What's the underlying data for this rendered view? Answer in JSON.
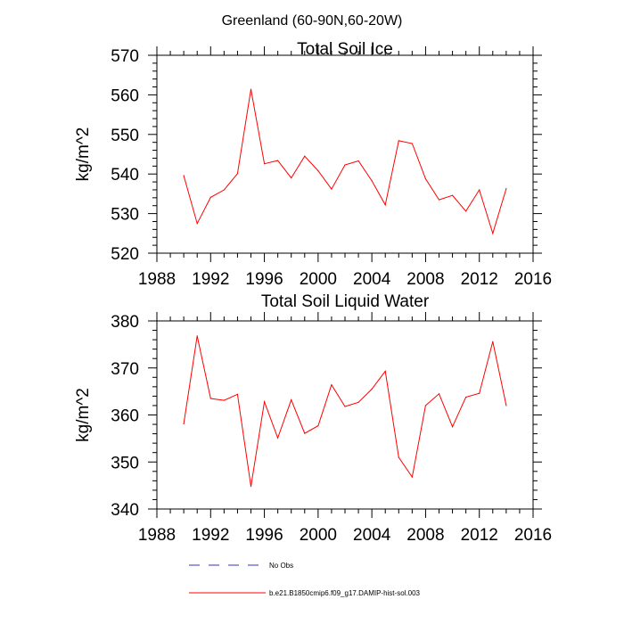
{
  "figure_title": "Greenland (60-90N,60-20W)",
  "chart_data": [
    {
      "type": "line",
      "title": "Total Soil Ice",
      "xlabel": "",
      "ylabel": "kg/m^2",
      "xlim": [
        1988,
        2016
      ],
      "ylim": [
        520,
        570
      ],
      "x_ticks": [
        1988,
        1992,
        1996,
        2000,
        2004,
        2008,
        2012,
        2016
      ],
      "y_ticks": [
        520,
        530,
        540,
        550,
        560,
        570
      ],
      "grid": false,
      "series": [
        {
          "name": "b.e21.B1850cmip6.f09_g17.DAMIP-hist-sol.003",
          "color": "#ff0000",
          "x": [
            1990,
            1991,
            1992,
            1993,
            1994,
            1995,
            1996,
            1997,
            1998,
            1999,
            2000,
            2001,
            2002,
            2003,
            2004,
            2005,
            2006,
            2007,
            2008,
            2009,
            2010,
            2011,
            2012,
            2013,
            2014
          ],
          "y": [
            539.6,
            527.5,
            534.1,
            536.0,
            540.1,
            561.4,
            542.6,
            543.4,
            539.0,
            544.5,
            540.8,
            536.2,
            542.3,
            543.3,
            538.3,
            532.2,
            548.4,
            547.7,
            538.8,
            533.5,
            534.6,
            530.6,
            536.0,
            525.0,
            536.3
          ]
        }
      ]
    },
    {
      "type": "line",
      "title": "Total Soil Liquid Water",
      "xlabel": "",
      "ylabel": "kg/m^2",
      "xlim": [
        1988,
        2016
      ],
      "ylim": [
        340,
        380
      ],
      "x_ticks": [
        1988,
        1992,
        1996,
        2000,
        2004,
        2008,
        2012,
        2016
      ],
      "y_ticks": [
        340,
        350,
        360,
        370,
        380
      ],
      "grid": false,
      "series": [
        {
          "name": "b.e21.B1850cmip6.f09_g17.DAMIP-hist-sol.003",
          "color": "#ff0000",
          "x": [
            1990,
            1991,
            1992,
            1993,
            1994,
            1995,
            1996,
            1997,
            1998,
            1999,
            2000,
            2001,
            2002,
            2003,
            2004,
            2005,
            2006,
            2007,
            2008,
            2009,
            2010,
            2011,
            2012,
            2013,
            2014
          ],
          "y": [
            358.1,
            376.8,
            363.5,
            363.1,
            364.4,
            344.8,
            362.8,
            355.1,
            363.2,
            356.1,
            357.7,
            366.4,
            361.8,
            362.7,
            365.5,
            369.3,
            351.0,
            346.8,
            362.0,
            364.5,
            357.5,
            363.8,
            364.6,
            375.6,
            362.0
          ]
        }
      ]
    }
  ],
  "legend": {
    "placement": "bottom",
    "entries": [
      {
        "label": "No Obs",
        "color": "#3333bb",
        "style": "dashed"
      },
      {
        "label": "b.e21.B1850cmip6.f09_g17.DAMIP-hist-sol.003",
        "color": "#ff0000",
        "style": "solid"
      }
    ]
  }
}
